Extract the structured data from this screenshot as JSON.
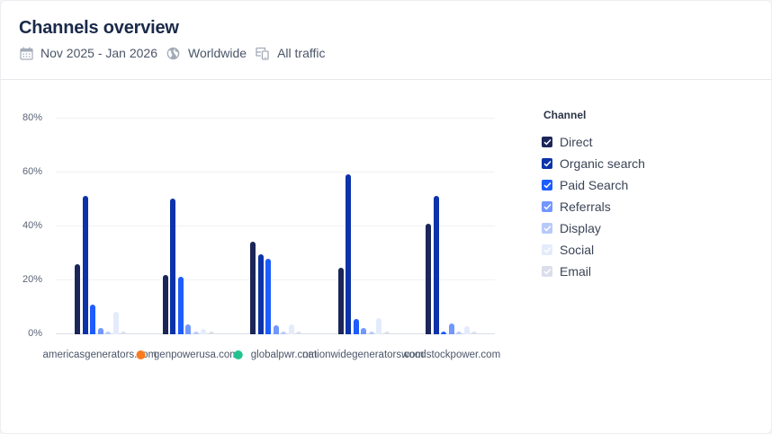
{
  "header": {
    "title": "Channels overview",
    "date_range": "Nov 2025 - Jan 2026",
    "region": "Worldwide",
    "traffic": "All traffic",
    "icons": {
      "date": "calendar-icon",
      "region": "globe-icon",
      "traffic": "devices-icon"
    }
  },
  "legend": {
    "title": "Channel",
    "items": [
      {
        "label": "Direct",
        "color": "#1b2659",
        "checked": true
      },
      {
        "label": "Organic search",
        "color": "#0c33a9",
        "checked": true
      },
      {
        "label": "Paid Search",
        "color": "#1d5cff",
        "checked": true
      },
      {
        "label": "Referrals",
        "color": "#7297ff",
        "checked": true
      },
      {
        "label": "Display",
        "color": "#b6c9fb",
        "checked": true
      },
      {
        "label": "Social",
        "color": "#e4ebfc",
        "checked": true
      },
      {
        "label": "Email",
        "color": "#dadeea",
        "checked": true
      }
    ]
  },
  "chart_data": {
    "type": "bar",
    "title": "Channels overview",
    "xlabel": "",
    "ylabel": "",
    "ylim": [
      0,
      80
    ],
    "yticks": [
      0,
      20,
      40,
      60,
      80
    ],
    "ytick_labels": [
      "0%",
      "20%",
      "40%",
      "60%",
      "80%"
    ],
    "grid": true,
    "legend_position": "right",
    "categories": [
      {
        "label": "americasgenerators.com",
        "marker": null
      },
      {
        "label": "genpowerusa.com",
        "marker": "#f97a1f"
      },
      {
        "label": "globalpwr.com",
        "marker": "#20c38e"
      },
      {
        "label": "nationwidegenerators.com",
        "marker": null
      },
      {
        "label": "woodstockpower.com",
        "marker": null
      }
    ],
    "series": [
      {
        "name": "Direct",
        "color": "#1b2659",
        "values": [
          26.0,
          22.0,
          34.3,
          24.8,
          40.9
        ]
      },
      {
        "name": "Organic search",
        "color": "#0c33a9",
        "values": [
          51.5,
          50.3,
          29.7,
          59.4,
          51.2
        ]
      },
      {
        "name": "Paid Search",
        "color": "#1d5cff",
        "values": [
          11.0,
          21.3,
          28.0,
          5.7,
          0.7
        ]
      },
      {
        "name": "Referrals",
        "color": "#7297ff",
        "values": [
          2.3,
          3.7,
          3.3,
          2.3,
          3.9
        ]
      },
      {
        "name": "Display",
        "color": "#b6c9fb",
        "values": [
          0.5,
          0.5,
          0.7,
          0.5,
          0.5
        ]
      },
      {
        "name": "Social",
        "color": "#e4ebfc",
        "values": [
          8.3,
          2.0,
          3.7,
          6.0,
          3.1
        ]
      },
      {
        "name": "Email",
        "color": "#dadeea",
        "values": [
          0.5,
          0.5,
          0.5,
          0.5,
          0.5
        ]
      }
    ]
  }
}
